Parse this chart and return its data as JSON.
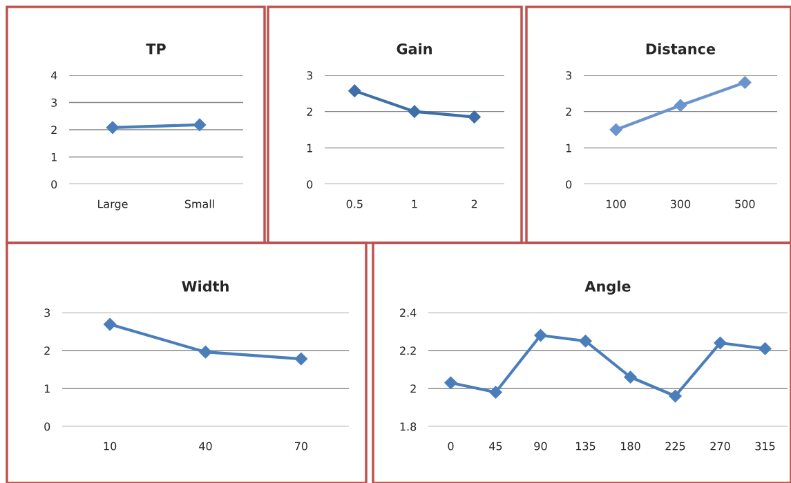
{
  "chart_data": [
    {
      "type": "line",
      "title": "TP",
      "categories": [
        "Large",
        "Small"
      ],
      "series": [
        {
          "color": "#4a7ebb",
          "values": [
            2.08,
            2.18
          ]
        }
      ],
      "ylim": [
        0,
        4
      ],
      "yticks": [
        0,
        1,
        2,
        3,
        4
      ],
      "grid": "y",
      "marker": "diamond",
      "line_style": "solid"
    },
    {
      "type": "line",
      "title": "Gain",
      "categories": [
        "0.5",
        "1",
        "2"
      ],
      "series": [
        {
          "color": "#3f6fa8",
          "values": [
            2.57,
            2.0,
            1.85
          ]
        }
      ],
      "ylim": [
        0,
        3
      ],
      "yticks": [
        0,
        1,
        2,
        3
      ],
      "grid": "y",
      "marker": "diamond",
      "line_style": "solid"
    },
    {
      "type": "line",
      "title": "Distance",
      "categories": [
        "100",
        "300",
        "500"
      ],
      "series": [
        {
          "color": "#6a95cc",
          "values": [
            1.5,
            2.17,
            2.8
          ]
        }
      ],
      "ylim": [
        0,
        3
      ],
      "yticks": [
        0,
        1,
        2,
        3
      ],
      "grid": "y",
      "marker": "diamond",
      "line_style": "solid"
    },
    {
      "type": "line",
      "title": "Width",
      "categories": [
        "10",
        "40",
        "70"
      ],
      "series": [
        {
          "color": "#4a7ebb",
          "values": [
            2.69,
            1.96,
            1.78
          ]
        }
      ],
      "ylim": [
        0,
        3
      ],
      "yticks": [
        0,
        1,
        2,
        3
      ],
      "grid": "y",
      "marker": "diamond",
      "line_style": "solid"
    },
    {
      "type": "line",
      "title": "Angle",
      "categories": [
        "0",
        "45",
        "90",
        "135",
        "180",
        "225",
        "270",
        "315"
      ],
      "series": [
        {
          "color": "#4a7ebb",
          "values": [
            2.03,
            1.98,
            2.28,
            2.25,
            2.06,
            1.96,
            2.24,
            2.21
          ]
        }
      ],
      "ylim": [
        1.8,
        2.4
      ],
      "yticks": [
        1.8,
        2.0,
        2.2,
        2.4
      ],
      "grid": "y",
      "marker": "diamond",
      "line_style": "solid"
    }
  ]
}
